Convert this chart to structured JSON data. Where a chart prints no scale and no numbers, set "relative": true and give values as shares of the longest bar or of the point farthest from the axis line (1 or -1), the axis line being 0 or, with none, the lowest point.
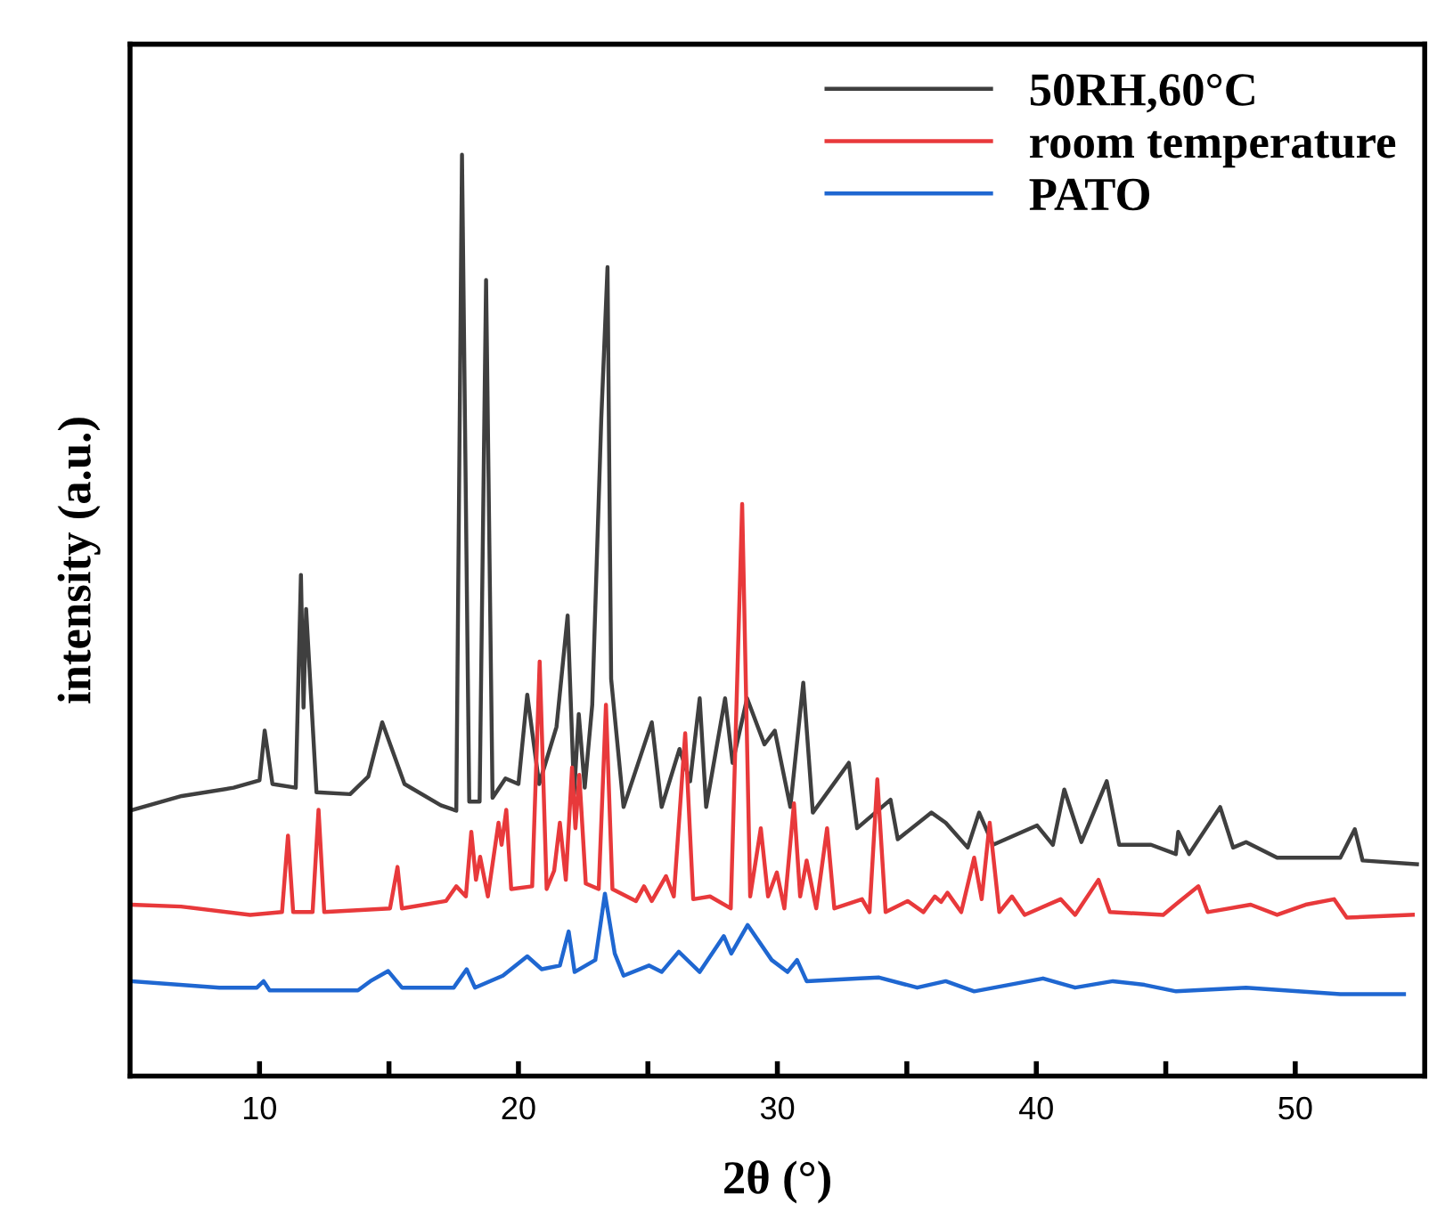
{
  "chart_data": {
    "type": "line",
    "relative": true,
    "xlabel": "2θ (°)",
    "ylabel": "intensity (a.u.)",
    "xlim": [
      5,
      55
    ],
    "xticks": [
      10,
      {
        "value": 15,
        "label": null
      },
      20,
      {
        "value": 25,
        "label": null
      },
      30,
      {
        "value": 35,
        "label": null
      },
      40,
      {
        "value": 45,
        "label": null
      },
      50
    ],
    "legend": "top right",
    "grid": false,
    "line_style": "solid",
    "marker": "none",
    "tick_labels": "x",
    "series": [
      {
        "name": "50RH,60°C",
        "color": "#3f3f3f",
        "x": [
          5,
          7,
          9,
          10.0,
          10.2,
          10.5,
          11.4,
          11.6,
          11.7,
          11.8,
          12.2,
          13.5,
          14.2,
          14.74,
          15.6,
          17.0,
          17.6,
          17.82,
          18.1,
          18.5,
          18.75,
          19.0,
          19.5,
          20.0,
          20.34,
          20.8,
          21.47,
          21.9,
          22.15,
          22.33,
          22.56,
          22.85,
          23.2,
          23.44,
          23.58,
          24.06,
          25.15,
          25.53,
          26.22,
          26.63,
          27.0,
          27.25,
          27.98,
          28.27,
          28.83,
          29.5,
          29.9,
          30.5,
          31.0,
          31.37,
          32.76,
          33.08,
          34.37,
          34.65,
          35.95,
          36.5,
          37.35,
          37.79,
          38.33,
          40.03,
          40.64,
          41.08,
          41.74,
          42.72,
          43.2,
          44.43,
          45.39,
          45.48,
          45.9,
          47.1,
          47.6,
          48.1,
          49.3,
          51.74,
          52.3,
          52.6,
          54.7
        ],
        "values": [
          0.288,
          0.304,
          0.313,
          0.321,
          0.375,
          0.317,
          0.313,
          0.544,
          0.4,
          0.507,
          0.308,
          0.306,
          0.325,
          0.384,
          0.317,
          0.294,
          0.288,
          1.0,
          0.298,
          0.298,
          0.864,
          0.302,
          0.323,
          0.317,
          0.414,
          0.317,
          0.379,
          0.5,
          0.306,
          0.393,
          0.313,
          0.403,
          0.714,
          0.878,
          0.431,
          0.292,
          0.384,
          0.292,
          0.355,
          0.32,
          0.41,
          0.292,
          0.41,
          0.34,
          0.41,
          0.36,
          0.375,
          0.292,
          0.427,
          0.286,
          0.34,
          0.269,
          0.3,
          0.257,
          0.286,
          0.275,
          0.248,
          0.286,
          0.251,
          0.272,
          0.251,
          0.311,
          0.254,
          0.32,
          0.251,
          0.251,
          0.241,
          0.265,
          0.241,
          0.292,
          0.248,
          0.254,
          0.237,
          0.237,
          0.268,
          0.234,
          0.23
        ]
      },
      {
        "name": "room temperature",
        "color": "#e8393b",
        "x": [
          5.05,
          6.97,
          9.64,
          10.87,
          11.1,
          11.3,
          12.05,
          12.28,
          12.5,
          15.04,
          15.33,
          15.5,
          17.2,
          17.6,
          17.97,
          18.18,
          18.36,
          18.52,
          18.82,
          19.23,
          19.35,
          19.53,
          19.72,
          20.53,
          20.82,
          21.09,
          21.38,
          21.6,
          21.83,
          22.07,
          22.2,
          22.35,
          22.6,
          23.1,
          23.38,
          23.63,
          24.54,
          24.85,
          25.15,
          25.7,
          26.0,
          26.44,
          26.75,
          27.4,
          28.2,
          28.64,
          28.95,
          29.36,
          29.64,
          29.98,
          30.27,
          30.64,
          30.88,
          31.13,
          31.5,
          31.92,
          32.2,
          33.27,
          33.56,
          33.86,
          34.18,
          35.03,
          35.64,
          36.08,
          36.32,
          36.57,
          37.1,
          37.6,
          37.89,
          38.2,
          38.57,
          39.06,
          39.55,
          40.94,
          41.5,
          42.4,
          42.84,
          44.9,
          45.5,
          46.26,
          46.62,
          48.28,
          49.3,
          50.4,
          51.5,
          51.99,
          54.54
        ],
        "values": [
          0.186,
          0.184,
          0.175,
          0.178,
          0.261,
          0.178,
          0.178,
          0.289,
          0.178,
          0.182,
          0.227,
          0.182,
          0.19,
          0.206,
          0.195,
          0.265,
          0.213,
          0.238,
          0.195,
          0.275,
          0.251,
          0.289,
          0.203,
          0.206,
          0.45,
          0.203,
          0.223,
          0.275,
          0.213,
          0.335,
          0.269,
          0.327,
          0.209,
          0.203,
          0.403,
          0.203,
          0.19,
          0.206,
          0.19,
          0.217,
          0.195,
          0.372,
          0.192,
          0.195,
          0.182,
          0.621,
          0.195,
          0.269,
          0.195,
          0.221,
          0.182,
          0.296,
          0.195,
          0.234,
          0.182,
          0.269,
          0.182,
          0.192,
          0.178,
          0.322,
          0.178,
          0.19,
          0.178,
          0.195,
          0.189,
          0.199,
          0.178,
          0.237,
          0.192,
          0.275,
          0.178,
          0.195,
          0.175,
          0.192,
          0.175,
          0.213,
          0.178,
          0.175,
          0.189,
          0.206,
          0.178,
          0.186,
          0.175,
          0.186,
          0.192,
          0.172,
          0.175
        ]
      },
      {
        "name": "PATO",
        "color": "#1f67d1",
        "x": [
          5.05,
          8.45,
          9.9,
          10.16,
          10.39,
          13.8,
          14.28,
          14.97,
          15.5,
          17.5,
          18.0,
          18.32,
          19.4,
          20.34,
          20.9,
          21.6,
          21.94,
          22.17,
          22.97,
          23.34,
          23.72,
          24.06,
          25.04,
          25.53,
          26.19,
          27.0,
          27.93,
          28.22,
          28.85,
          29.78,
          30.39,
          30.76,
          31.13,
          33.2,
          33.93,
          35.4,
          36.5,
          37.6,
          40.26,
          41.5,
          42.96,
          44.18,
          45.4,
          48.1,
          51.74,
          54.2
        ],
        "values": [
          0.103,
          0.096,
          0.096,
          0.103,
          0.093,
          0.093,
          0.103,
          0.114,
          0.096,
          0.096,
          0.116,
          0.096,
          0.109,
          0.13,
          0.116,
          0.12,
          0.157,
          0.113,
          0.126,
          0.198,
          0.133,
          0.109,
          0.12,
          0.113,
          0.135,
          0.113,
          0.152,
          0.133,
          0.164,
          0.126,
          0.113,
          0.126,
          0.103,
          0.106,
          0.107,
          0.096,
          0.103,
          0.092,
          0.106,
          0.096,
          0.103,
          0.099,
          0.092,
          0.096,
          0.089,
          0.089
        ]
      }
    ]
  }
}
